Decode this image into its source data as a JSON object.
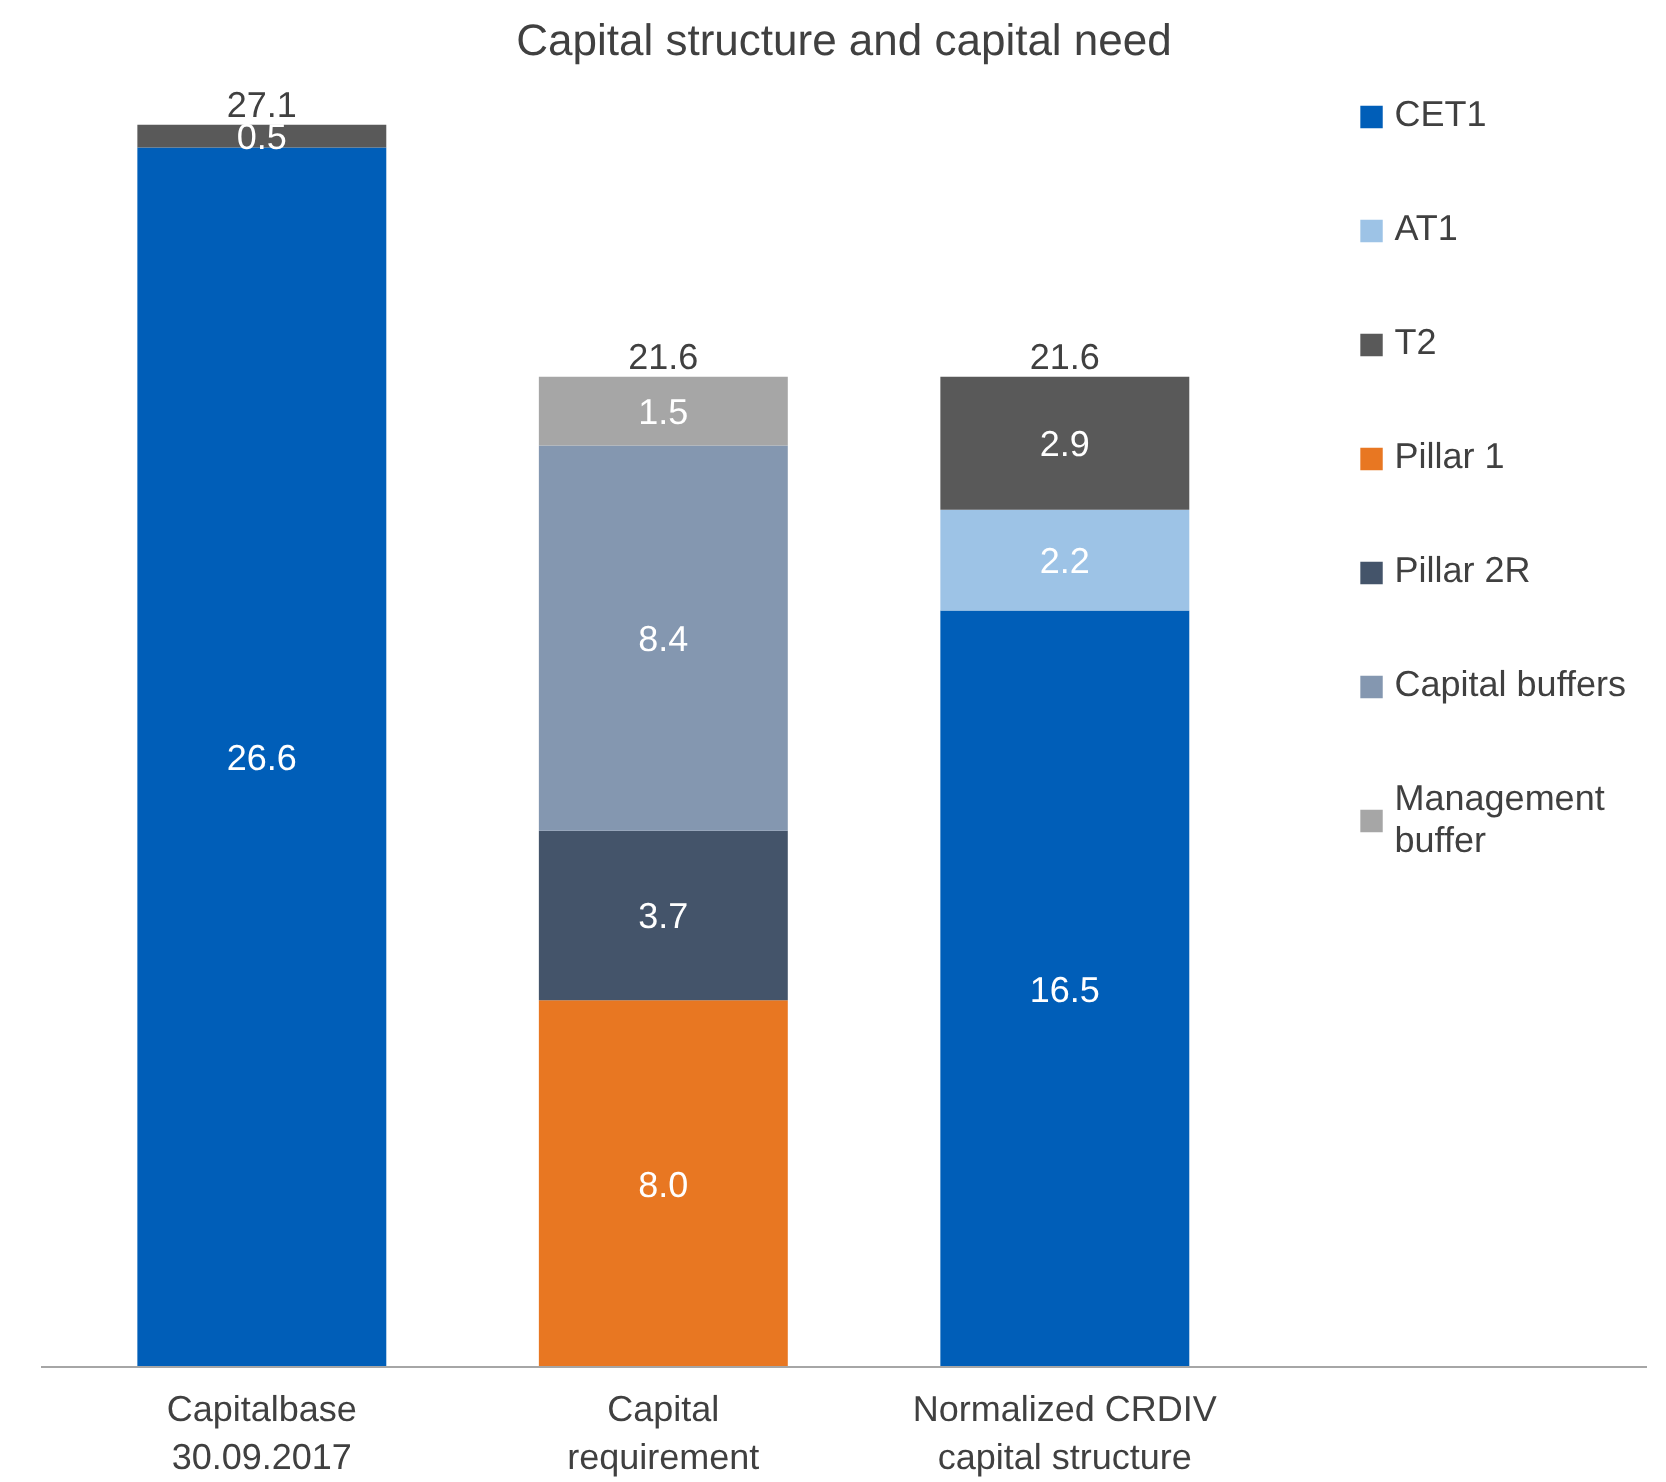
{
  "chart_data": {
    "type": "bar",
    "title": "Capital structure and capital need",
    "categories": [
      "Capitalbase\n30.09.2017",
      "Capital\nrequirement",
      "Normalized CRDIV\ncapital structure"
    ],
    "stacked": true,
    "totals": [
      "27.1",
      "21.6",
      "21.6"
    ],
    "legend": "right",
    "grid": false,
    "series": [
      {
        "name": "CET1",
        "color": "#005eb8",
        "values": [
          26.6,
          null,
          16.5
        ],
        "value_labels": [
          "26.6",
          null,
          "16.5"
        ]
      },
      {
        "name": "AT1",
        "color": "#9dc3e6",
        "values": [
          null,
          null,
          2.2
        ],
        "value_labels": [
          null,
          null,
          "2.2"
        ]
      },
      {
        "name": "T2",
        "color": "#595959",
        "values": [
          0.5,
          null,
          2.9
        ],
        "value_labels": [
          "0.5",
          null,
          "2.9"
        ]
      },
      {
        "name": "Pillar 1",
        "color": "#e87722",
        "values": [
          null,
          8.0,
          null
        ],
        "value_labels": [
          null,
          "8.0",
          null
        ]
      },
      {
        "name": "Pillar 2R",
        "color": "#44546a",
        "values": [
          null,
          3.7,
          null
        ],
        "value_labels": [
          null,
          "3.7",
          null
        ]
      },
      {
        "name": "Capital buffers",
        "color": "#8497b0",
        "values": [
          null,
          8.4,
          null
        ],
        "value_labels": [
          null,
          "8.4",
          null
        ]
      },
      {
        "name": "Management\nbuffer",
        "color": "#a6a6a6",
        "values": [
          null,
          1.5,
          null
        ],
        "value_labels": [
          null,
          "1.5",
          null
        ]
      }
    ]
  }
}
